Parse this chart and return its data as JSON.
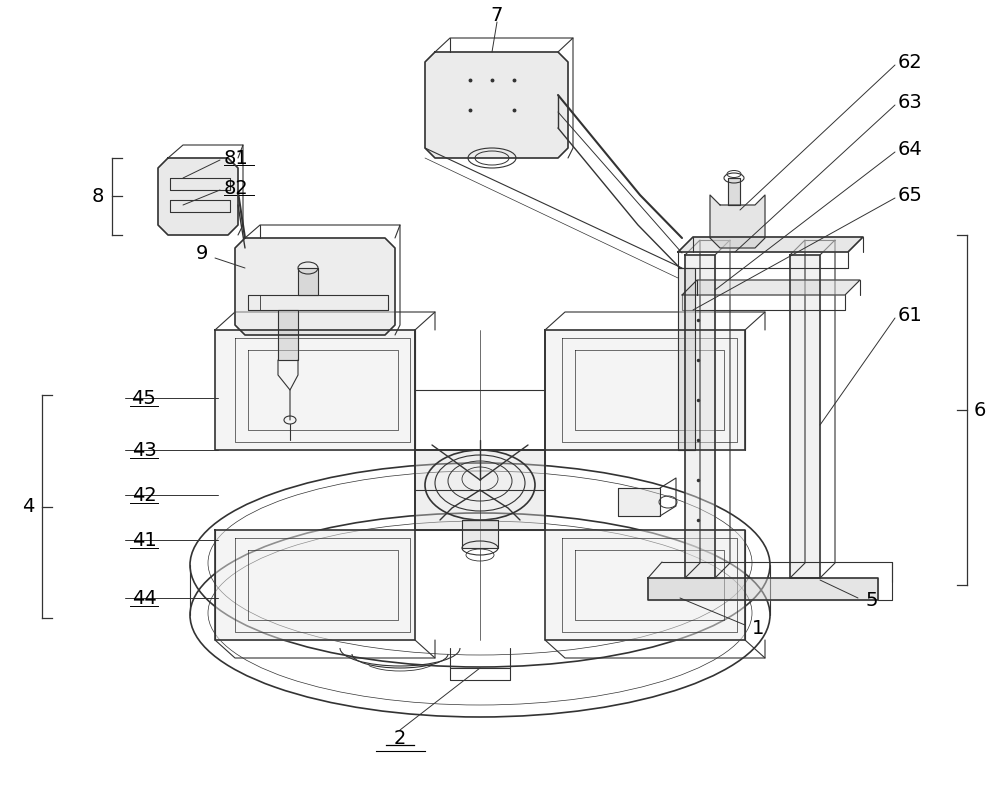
{
  "bg_color": "#ffffff",
  "line_color": "#333333",
  "line_width": 0.8,
  "fig_width": 10.0,
  "fig_height": 7.89,
  "label_fs": 14
}
